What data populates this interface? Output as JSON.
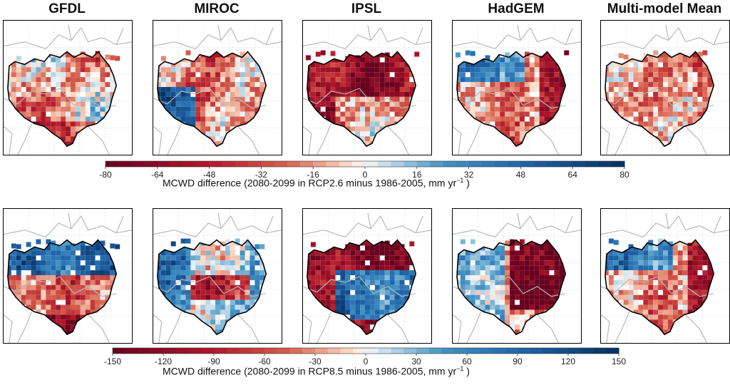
{
  "models": [
    "GFDL",
    "MIROC",
    "IPSL",
    "HadGEM",
    "Multi-model Mean"
  ],
  "rows": [
    {
      "scenario": "RCP2.6",
      "colorbar": {
        "ticks": [
          "-80",
          "-64",
          "-48",
          "-32",
          "-16",
          "0",
          "16",
          "32",
          "48",
          "64",
          "80"
        ],
        "label_prefix": "MCWD difference (2080-2099 in RCP2.6 minus 1986-2005, mm yr",
        "label_sup": "−1",
        "label_suffix": " )"
      },
      "panels": [
        {
          "model": "GFDL",
          "pattern": "mixed-mild"
        },
        {
          "model": "MIROC",
          "pattern": "wet-southwest"
        },
        {
          "model": "IPSL",
          "pattern": "dry-north-west"
        },
        {
          "model": "HadGEM",
          "pattern": "dry-east"
        },
        {
          "model": "Multi-model Mean",
          "pattern": "mild-dry"
        }
      ]
    },
    {
      "scenario": "RCP8.5",
      "colorbar": {
        "ticks": [
          "-150",
          "-120",
          "-90",
          "-60",
          "-30",
          "0",
          "30",
          "60",
          "90",
          "120",
          "150"
        ],
        "label_prefix": "MCWD difference (2080-2099 in RCP8.5 minus 1986-2005, mm yr",
        "label_sup": "−1",
        "label_suffix": " )"
      },
      "panels": [
        {
          "model": "GFDL",
          "pattern": "wet-north-dry-south"
        },
        {
          "model": "MIROC",
          "pattern": "mixed-center-dry"
        },
        {
          "model": "IPSL",
          "pattern": "wet-center-dry-edges"
        },
        {
          "model": "HadGEM",
          "pattern": "very-dry-northeast"
        },
        {
          "model": "Multi-model Mean",
          "pattern": "dry-east"
        }
      ]
    }
  ],
  "colors": {
    "dry_strong": "#67001f",
    "dry_mid": "#d6604d",
    "dry_light": "#fddbc7",
    "neutral": "#f7f7f7",
    "wet_light": "#d1e5f0",
    "wet_mid": "#4393c3",
    "wet_strong": "#053061",
    "basin_outline": "#000000",
    "country_lines": "#b8b8b8"
  }
}
